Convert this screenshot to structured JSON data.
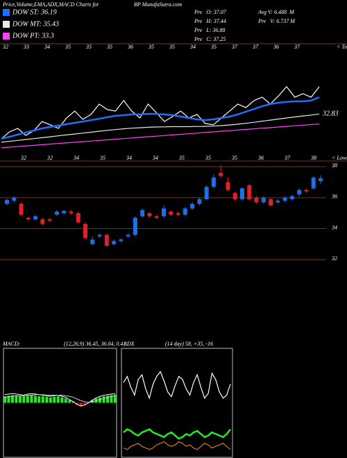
{
  "chart_data": [
    {
      "type": "line",
      "title": "Price,Volume,EMA,ADX,MACD Charts for",
      "subtitle": "BP MunafaSutra.com",
      "annotations": [
        "Pre   O: 37.07",
        "Pre   H: 37.44",
        "Pre   L: 36.88",
        "Pre   C: 37.25",
        "Avg V: 6.488  M",
        "Pre   V: 6.737 M"
      ],
      "top_labels": [
        "32",
        "33",
        "34",
        "35",
        "35",
        "35",
        "36",
        "35",
        "35",
        "34",
        "35",
        "37",
        "37",
        "36",
        "37"
      ],
      "tops_label": "< Tops",
      "last_label": "32.83",
      "ylim": [
        31,
        38.5
      ],
      "series": [
        {
          "color": "#ffffff",
          "values": [
            32.14,
            32.59,
            32.82,
            32.36,
            32.68,
            33.27,
            33.05,
            32.82,
            33.5,
            33.95,
            33.41,
            33.73,
            34.41,
            34.05,
            33.95,
            34.64,
            33.95,
            33.5,
            34.41,
            33.86,
            33.27,
            33.59,
            33.95,
            33.5,
            33.73,
            33.14,
            33.05,
            33.5,
            33.95,
            34.41,
            34.18,
            34.64,
            34.86,
            34.41,
            34.95,
            35.55,
            34.86,
            35.09,
            34.86,
            35.55
          ]
        },
        {
          "name": "DOW ST: 36.19",
          "color": "#1f6fff",
          "values": [
            32.14,
            32.27,
            32.41,
            32.55,
            32.68,
            32.82,
            32.91,
            33.0,
            33.09,
            33.18,
            33.27,
            33.36,
            33.45,
            33.55,
            33.64,
            33.68,
            33.73,
            33.73,
            33.77,
            33.77,
            33.73,
            33.68,
            33.59,
            33.5,
            33.41,
            33.36,
            33.41,
            33.5,
            33.59,
            33.73,
            33.91,
            34.09,
            34.27,
            34.41,
            34.5,
            34.55,
            34.59,
            34.59,
            34.64,
            34.86
          ]
        },
        {
          "name": "DOW MT: 35.43",
          "color": "#e8e8e8",
          "values": [
            31.91,
            31.97,
            32.03,
            32.09,
            32.15,
            32.21,
            32.27,
            32.33,
            32.39,
            32.45,
            32.51,
            32.57,
            32.63,
            32.69,
            32.74,
            32.79,
            32.83,
            32.86,
            32.89,
            32.91,
            32.92,
            32.93,
            32.93,
            32.93,
            32.94,
            32.95,
            32.97,
            33.0,
            33.04,
            33.09,
            33.15,
            33.22,
            33.29,
            33.36,
            33.43,
            33.5,
            33.57,
            33.63,
            33.69,
            33.76
          ]
        },
        {
          "name": "DOW PT: 33.3",
          "color": "#ff40ff",
          "values": [
            31.55,
            31.59,
            31.63,
            31.67,
            31.71,
            31.75,
            31.79,
            31.83,
            31.87,
            31.91,
            31.95,
            31.99,
            32.03,
            32.07,
            32.11,
            32.15,
            32.19,
            32.23,
            32.27,
            32.31,
            32.35,
            32.39,
            32.43,
            32.47,
            32.51,
            32.55,
            32.59,
            32.63,
            32.67,
            32.71,
            32.75,
            32.79,
            32.83,
            32.87,
            32.91,
            32.95,
            32.99,
            33.03,
            33.07,
            33.11
          ]
        }
      ]
    },
    {
      "type": "candlestick",
      "low_labels": [
        "32",
        "32",
        "34",
        "35",
        "34",
        "34",
        "35",
        "35",
        "35",
        "36",
        "37",
        "38"
      ],
      "lows_label": "< Lows",
      "ylim": [
        31.2,
        38.5
      ],
      "yticks": [
        32,
        34,
        36,
        38
      ],
      "grid": true,
      "up_color": "#1e6fe8",
      "down_color": "#e0202a",
      "open": [
        35.6,
        35.8,
        35.6,
        34.7,
        34.6,
        34.6,
        34.6,
        34.9,
        35.0,
        35.1,
        35.0,
        34.3,
        33.0,
        33.5,
        33.6,
        33.0,
        33.2,
        33.5,
        33.6,
        34.8,
        35.0,
        34.8,
        34.8,
        35.1,
        35.0,
        34.9,
        35.3,
        35.6,
        35.9,
        36.7,
        37.6,
        37.0,
        36.3,
        35.9,
        36.8,
        36.0,
        35.7,
        35.9,
        35.7,
        35.8,
        35.9,
        36.2,
        36.5,
        36.6,
        37.07
      ],
      "high": [
        35.95,
        36.1,
        35.7,
        34.8,
        34.9,
        34.7,
        34.7,
        35.2,
        35.2,
        35.2,
        35.1,
        34.4,
        33.5,
        33.7,
        33.7,
        33.3,
        33.4,
        33.7,
        34.8,
        35.3,
        35.1,
        34.9,
        35.5,
        35.2,
        35.1,
        35.4,
        35.7,
        36.0,
        36.8,
        37.5,
        38.1,
        37.3,
        36.4,
        36.7,
        36.9,
        36.1,
        36.1,
        36.0,
        35.9,
        36.1,
        36.2,
        36.6,
        36.6,
        37.4,
        37.44
      ],
      "low": [
        35.5,
        35.7,
        34.8,
        34.5,
        34.5,
        34.2,
        34.4,
        34.8,
        34.9,
        34.9,
        34.3,
        33.3,
        32.9,
        33.4,
        32.8,
        32.9,
        33.1,
        33.4,
        33.5,
        34.7,
        34.7,
        34.6,
        34.7,
        34.8,
        34.8,
        34.8,
        35.2,
        35.5,
        35.8,
        36.6,
        37.3,
        36.4,
        35.8,
        35.8,
        35.8,
        35.6,
        35.6,
        35.4,
        35.6,
        35.7,
        35.8,
        36.1,
        36.3,
        36.5,
        36.88
      ],
      "close": [
        35.85,
        36.0,
        34.9,
        34.6,
        34.8,
        34.3,
        34.5,
        35.1,
        35.15,
        35.0,
        34.4,
        33.4,
        33.3,
        33.6,
        32.9,
        33.2,
        33.3,
        33.6,
        34.7,
        35.2,
        34.8,
        34.7,
        35.3,
        34.9,
        34.9,
        35.3,
        35.6,
        35.9,
        36.7,
        37.3,
        37.4,
        36.5,
        35.9,
        36.6,
        35.9,
        35.7,
        36.0,
        35.5,
        35.8,
        36.0,
        36.1,
        36.5,
        36.4,
        37.3,
        37.25
      ]
    },
    {
      "type": "macd",
      "title": "MACD:",
      "subtitle": "(12,26,9) 36.45, 36.04, 0.41",
      "ylim": [
        -1,
        1
      ],
      "macd": [
        0.15,
        0.16,
        0.17,
        0.16,
        0.15,
        0.14,
        0.16,
        0.17,
        0.16,
        0.15,
        0.14,
        0.13,
        0.12,
        0.13,
        0.14,
        0.12,
        0.1,
        0.06,
        0.02,
        -0.03,
        -0.06,
        -0.04,
        0.0,
        0.05,
        0.09,
        0.12,
        0.14,
        0.15,
        0.16,
        0.17
      ],
      "signal": [
        0.1,
        0.11,
        0.12,
        0.13,
        0.13,
        0.13,
        0.14,
        0.14,
        0.15,
        0.15,
        0.15,
        0.14,
        0.14,
        0.14,
        0.14,
        0.14,
        0.13,
        0.12,
        0.1,
        0.07,
        0.04,
        0.02,
        0.01,
        0.02,
        0.04,
        0.06,
        0.08,
        0.1,
        0.12,
        0.13
      ],
      "histogram": [
        0.12,
        0.13,
        0.14,
        0.13,
        0.12,
        0.12,
        0.13,
        0.14,
        0.13,
        0.12,
        0.12,
        0.11,
        0.1,
        0.11,
        0.12,
        0.1,
        0.08,
        0.05,
        0.02,
        -0.04,
        -0.06,
        -0.03,
        0.01,
        0.05,
        0.08,
        0.1,
        0.12,
        0.13,
        0.14,
        0.15
      ]
    },
    {
      "type": "adx",
      "title": "ADX",
      "subtitle": "(14 day) 58, +35, -16",
      "ylim": [
        0,
        70
      ],
      "series": [
        {
          "color": "#ffffff",
          "values": [
            48,
            52,
            45,
            40,
            50,
            53,
            44,
            38,
            47,
            52,
            55,
            49,
            42,
            39,
            46,
            52,
            50,
            44,
            40,
            48,
            53,
            45,
            38,
            41,
            54,
            50,
            42,
            38,
            40,
            47
          ]
        },
        {
          "color": "#22ee22",
          "values": [
            16,
            18,
            17,
            15,
            14,
            16,
            17,
            18,
            16,
            15,
            14,
            13,
            15,
            16,
            14,
            12,
            13,
            15,
            14,
            16,
            17,
            15,
            13,
            14,
            16,
            15,
            14,
            13,
            15,
            18
          ]
        },
        {
          "color": "#e07a10",
          "values": [
            6,
            5,
            7,
            8,
            9,
            7,
            6,
            5,
            6,
            8,
            9,
            10,
            8,
            7,
            8,
            10,
            9,
            7,
            8,
            6,
            5,
            7,
            9,
            8,
            6,
            7,
            8,
            9,
            7,
            5
          ]
        }
      ]
    }
  ]
}
